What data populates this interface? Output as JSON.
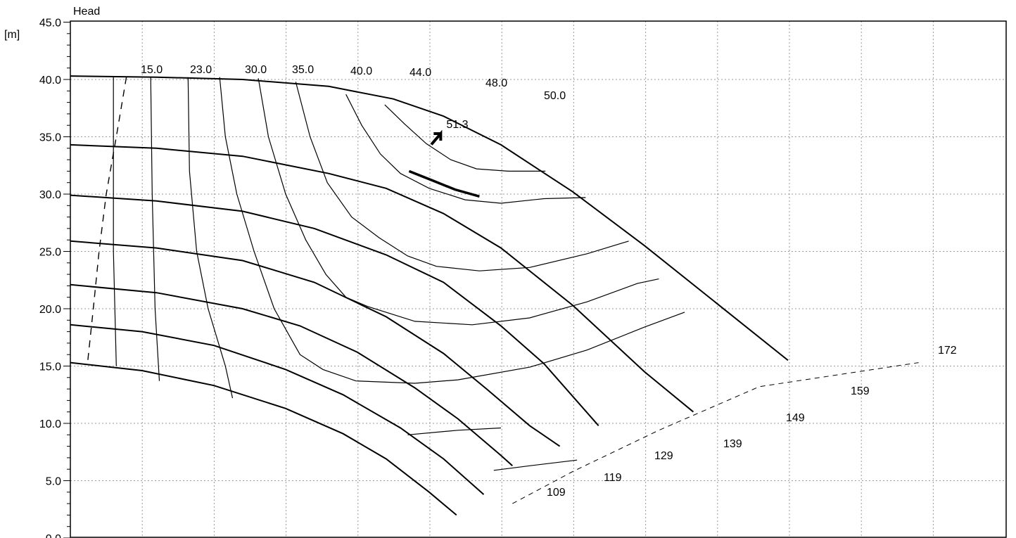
{
  "chart_data": {
    "type": "line",
    "title": "",
    "ylabel": "Head",
    "yunit": "[m]",
    "ylim": [
      0,
      45
    ],
    "y_ticks": [
      "0.0",
      "5.0",
      "10.0",
      "15.0",
      "20.0",
      "25.0",
      "30.0",
      "35.0",
      "40.0",
      "45.0"
    ],
    "grid": true,
    "series": [
      {
        "name": "172",
        "kind": "head",
        "points": [
          [
            0,
            40.3
          ],
          [
            6,
            40.2
          ],
          [
            12,
            40.0
          ],
          [
            18,
            39.4
          ],
          [
            22.5,
            38.3
          ],
          [
            26,
            36.8
          ],
          [
            30,
            34.3
          ],
          [
            35,
            30.2
          ],
          [
            40,
            25.5
          ],
          [
            45,
            20.5
          ],
          [
            50,
            15.5
          ]
        ]
      },
      {
        "name": "159",
        "kind": "head",
        "points": [
          [
            0,
            34.3
          ],
          [
            6,
            34.0
          ],
          [
            12,
            33.3
          ],
          [
            18,
            31.8
          ],
          [
            22,
            30.5
          ],
          [
            26,
            28.3
          ],
          [
            30,
            25.3
          ],
          [
            35,
            20.3
          ],
          [
            40,
            14.5
          ],
          [
            43.4,
            11.0
          ]
        ]
      },
      {
        "name": "149",
        "kind": "head",
        "points": [
          [
            0,
            29.9
          ],
          [
            6,
            29.4
          ],
          [
            12,
            28.5
          ],
          [
            17,
            27.0
          ],
          [
            22,
            24.7
          ],
          [
            26,
            22.3
          ],
          [
            30,
            18.5
          ],
          [
            33,
            15.2
          ],
          [
            36.8,
            9.8
          ]
        ]
      },
      {
        "name": "139",
        "kind": "head",
        "points": [
          [
            0,
            25.9
          ],
          [
            6,
            25.3
          ],
          [
            12,
            24.2
          ],
          [
            17,
            22.3
          ],
          [
            22,
            19.3
          ],
          [
            26,
            16.1
          ],
          [
            29,
            13.0
          ],
          [
            32,
            9.8
          ],
          [
            34.1,
            8.0
          ]
        ]
      },
      {
        "name": "129",
        "kind": "head",
        "points": [
          [
            0,
            22.1
          ],
          [
            6,
            21.4
          ],
          [
            12,
            20.0
          ],
          [
            16,
            18.5
          ],
          [
            20,
            16.2
          ],
          [
            24,
            13.1
          ],
          [
            27,
            10.4
          ],
          [
            30,
            7.2
          ],
          [
            30.8,
            6.3
          ]
        ]
      },
      {
        "name": "119",
        "kind": "head",
        "points": [
          [
            0,
            18.6
          ],
          [
            5,
            18.0
          ],
          [
            10,
            16.8
          ],
          [
            15,
            14.7
          ],
          [
            19,
            12.5
          ],
          [
            23,
            9.6
          ],
          [
            26,
            6.9
          ],
          [
            28.8,
            3.8
          ]
        ]
      },
      {
        "name": "109",
        "kind": "head",
        "points": [
          [
            0,
            15.3
          ],
          [
            5,
            14.6
          ],
          [
            10,
            13.3
          ],
          [
            15,
            11.3
          ],
          [
            19,
            9.1
          ],
          [
            22,
            6.9
          ],
          [
            25,
            4.0
          ],
          [
            26.9,
            2.0
          ]
        ]
      }
    ],
    "efficiency_curves": [
      {
        "name": "15.0",
        "points": [
          [
            3.0,
            40.2
          ],
          [
            3.0,
            25
          ],
          [
            3.2,
            15.0
          ]
        ]
      },
      {
        "name": "23.0",
        "points": [
          [
            5.6,
            40.2
          ],
          [
            5.7,
            30
          ],
          [
            5.9,
            20
          ],
          [
            6.2,
            13.7
          ]
        ]
      },
      {
        "name": "30.0",
        "points": [
          [
            8.2,
            40.2
          ],
          [
            8.3,
            32
          ],
          [
            8.8,
            25
          ],
          [
            9.6,
            20
          ],
          [
            10.8,
            15
          ],
          [
            11.3,
            12.2
          ]
        ]
      },
      {
        "name": "35.0",
        "points": [
          [
            10.4,
            40.2
          ],
          [
            10.8,
            35
          ],
          [
            11.6,
            30
          ],
          [
            12.8,
            25
          ],
          [
            14.2,
            20
          ],
          [
            16,
            16
          ],
          [
            17.6,
            14.7
          ],
          [
            19.9,
            13.7
          ],
          [
            24,
            13.5
          ],
          [
            27,
            13.8
          ],
          [
            32,
            14.9
          ],
          [
            36,
            16.4
          ],
          [
            40,
            18.4
          ],
          [
            42.8,
            19.7
          ]
        ]
      },
      {
        "name": "40.0",
        "points": [
          [
            13.1,
            40.1
          ],
          [
            13.8,
            35
          ],
          [
            15,
            30
          ],
          [
            16.4,
            26
          ],
          [
            17.8,
            23
          ],
          [
            19.2,
            21
          ],
          [
            20.7,
            20.2
          ],
          [
            24,
            18.9
          ],
          [
            28,
            18.6
          ],
          [
            32,
            19.2
          ],
          [
            36,
            20.6
          ],
          [
            39.5,
            22.2
          ],
          [
            41,
            22.6
          ]
        ]
      },
      {
        "name": "44.0",
        "points": [
          [
            15.7,
            39.8
          ],
          [
            16.7,
            35
          ],
          [
            17.9,
            31
          ],
          [
            19.6,
            28
          ],
          [
            21.5,
            26.2
          ],
          [
            23.5,
            24.6
          ],
          [
            25.5,
            23.7
          ],
          [
            28.5,
            23.3
          ],
          [
            32,
            23.6
          ],
          [
            36,
            24.8
          ],
          [
            38.9,
            25.9
          ]
        ]
      },
      {
        "name": "48.0",
        "points": [
          [
            19.2,
            38.7
          ],
          [
            20.3,
            36
          ],
          [
            21.6,
            33.5
          ],
          [
            23,
            31.8
          ],
          [
            25,
            30.5
          ],
          [
            27.5,
            29.5
          ],
          [
            30,
            29.2
          ],
          [
            33,
            29.6
          ],
          [
            35.9,
            29.7
          ]
        ]
      },
      {
        "name": "50.0",
        "points": [
          [
            21.9,
            37.8
          ],
          [
            23.3,
            36.1
          ],
          [
            24.8,
            34.4
          ],
          [
            26.5,
            33.0
          ],
          [
            28.3,
            32.2
          ],
          [
            30.5,
            32.0
          ],
          [
            33.1,
            32.0
          ]
        ]
      }
    ],
    "bep_label": "51.3",
    "bep_point": [
      25.9,
      35.4
    ],
    "curve_labels": {
      "efficiency": [
        "15.0",
        "23.0",
        "30.0",
        "35.0",
        "40.0",
        "44.0",
        "48.0",
        "50.0"
      ],
      "head": [
        "172",
        "159",
        "149",
        "139",
        "129",
        "119",
        "109"
      ]
    }
  }
}
